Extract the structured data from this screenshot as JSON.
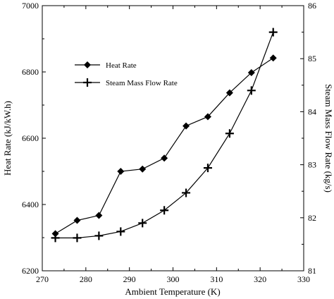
{
  "chart_data": {
    "type": "line",
    "xlabel": "Ambient Temperature (K)",
    "ylabel_left": "Heat Rate (kJ/kW.h)",
    "ylabel_right": "Steam Mass Flow Rate (kg/s)",
    "xlim": [
      270,
      330
    ],
    "ylim_left": [
      6200,
      7000
    ],
    "ylim_right": [
      81,
      86
    ],
    "xticks": [
      270,
      280,
      290,
      300,
      310,
      320,
      330
    ],
    "yticks_left": [
      6200,
      6400,
      6600,
      6800,
      7000
    ],
    "yticks_right": [
      81,
      82,
      83,
      84,
      85,
      86
    ],
    "grid": false,
    "legend_position": "upper-left",
    "series": [
      {
        "name": "Heat Rate",
        "axis": "left",
        "marker": "diamond",
        "x": [
          273,
          278,
          283,
          288,
          293,
          298,
          303,
          308,
          313,
          318,
          323
        ],
        "y": [
          6312,
          6352,
          6367,
          6500,
          6507,
          6540,
          6637,
          6665,
          6737,
          6798,
          6842
        ]
      },
      {
        "name": "Steam Mass Flow Rate",
        "axis": "right",
        "marker": "plus",
        "x": [
          273,
          278,
          283,
          288,
          293,
          298,
          303,
          308,
          313,
          318,
          323
        ],
        "y": [
          81.62,
          81.62,
          81.66,
          81.74,
          81.9,
          82.14,
          82.47,
          82.94,
          83.59,
          84.4,
          85.5
        ]
      }
    ]
  }
}
